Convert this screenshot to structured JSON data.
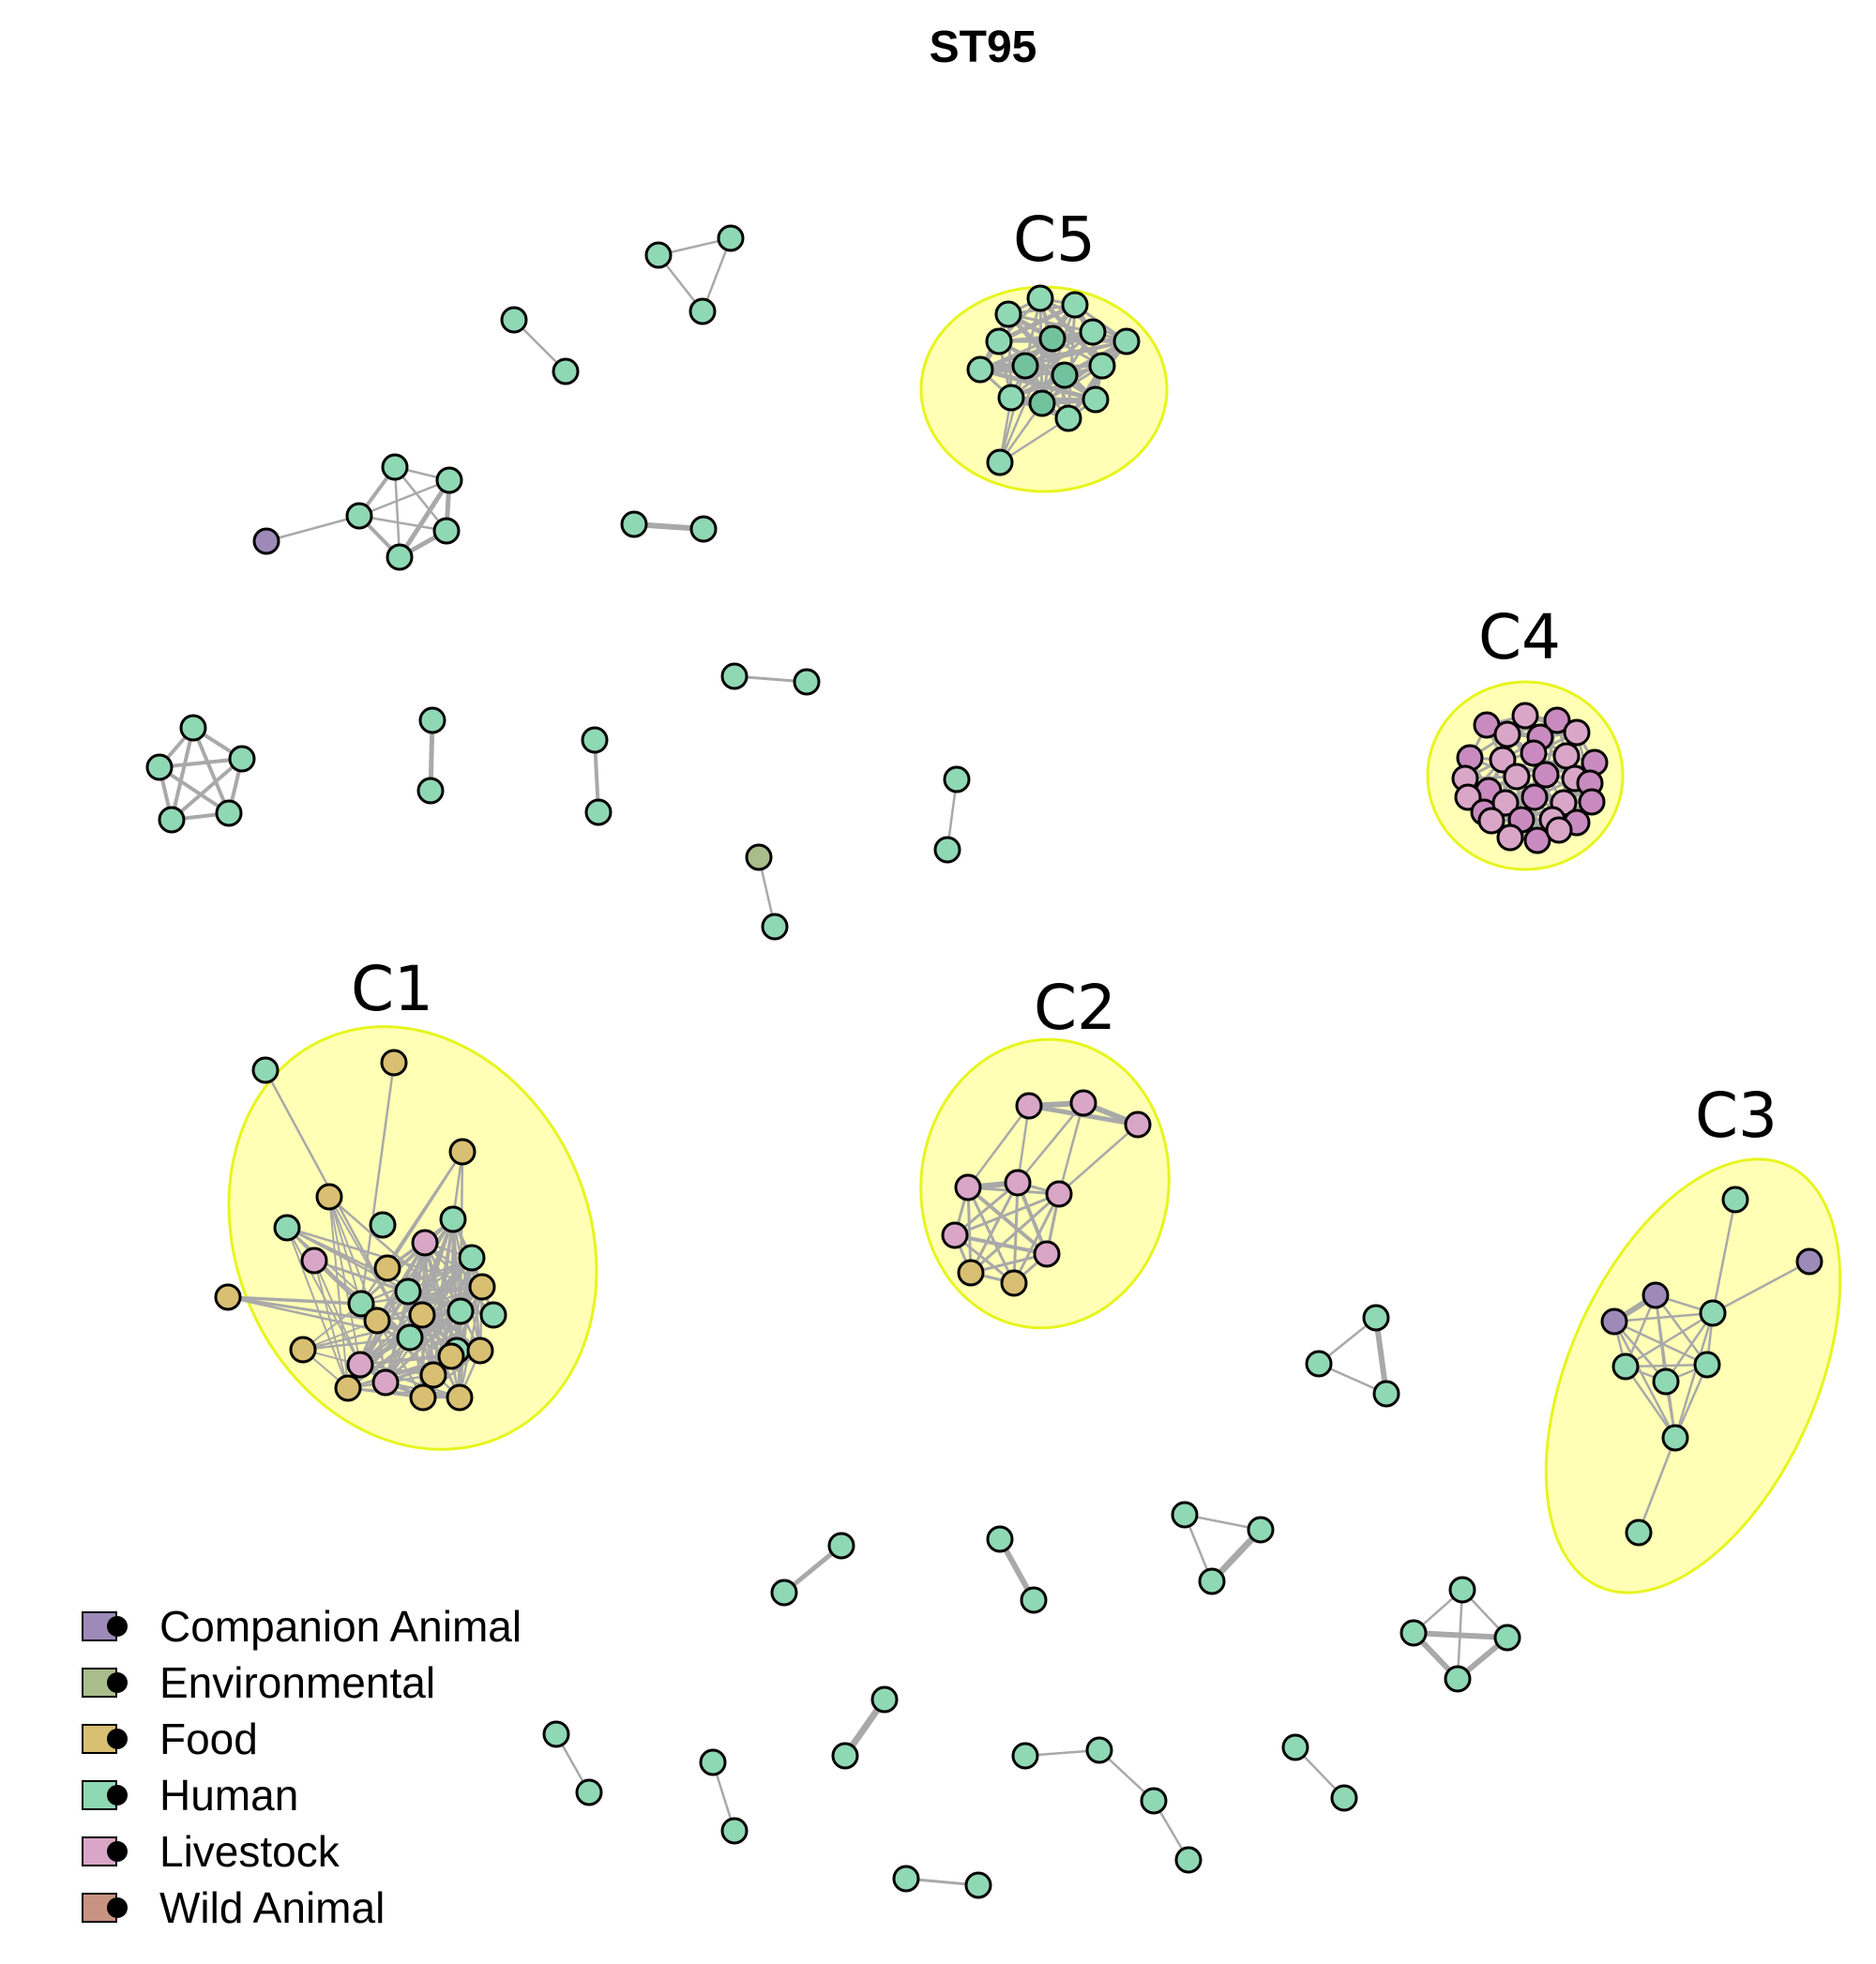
{
  "title": "ST95",
  "colors": {
    "Companion Animal": "#9d8ab8",
    "Environmental": "#a9bd8c",
    "Food": "#d8bf72",
    "Human": "#8fd8b4",
    "Livestock": "#d9a6c8",
    "Wild Animal": "#c99383",
    "node_stroke": "#000000",
    "edge": "#a9a9a9",
    "cluster_fill": "#ffff9c",
    "cluster_stroke": "#e6f51e"
  },
  "legend": [
    {
      "label": "Companion Animal"
    },
    {
      "label": "Environmental"
    },
    {
      "label": "Food"
    },
    {
      "label": "Human"
    },
    {
      "label": "Livestock"
    },
    {
      "label": "Wild Animal"
    }
  ],
  "clusters": [
    {
      "label": "C1"
    },
    {
      "label": "C2"
    },
    {
      "label": "C3"
    },
    {
      "label": "C4"
    },
    {
      "label": "C5"
    }
  ]
}
